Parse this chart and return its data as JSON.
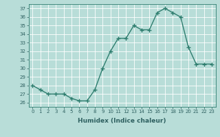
{
  "x": [
    0,
    1,
    2,
    3,
    4,
    5,
    6,
    7,
    8,
    9,
    10,
    11,
    12,
    13,
    14,
    15,
    16,
    17,
    18,
    19,
    20,
    21,
    22,
    23
  ],
  "y": [
    28,
    27.5,
    27,
    27,
    27,
    26.5,
    26.2,
    26.2,
    27.5,
    30,
    32,
    33.5,
    33.5,
    35,
    34.5,
    34.5,
    36.5,
    37,
    36.5,
    36,
    32.5,
    30.5,
    30.5,
    30.5
  ],
  "line_color": "#2e7d6e",
  "marker": "+",
  "bg_color": "#b8ddd8",
  "grid_color": "#e8f8f4",
  "xlabel": "Humidex (Indice chaleur)",
  "ylim": [
    25.5,
    37.5
  ],
  "xlim": [
    -0.5,
    23.5
  ],
  "yticks": [
    26,
    27,
    28,
    29,
    30,
    31,
    32,
    33,
    34,
    35,
    36,
    37
  ],
  "xticks": [
    0,
    1,
    2,
    3,
    4,
    5,
    6,
    7,
    8,
    9,
    10,
    11,
    12,
    13,
    14,
    15,
    16,
    17,
    18,
    19,
    20,
    21,
    22,
    23
  ],
  "font_color": "#2e6060",
  "linewidth": 1.0,
  "markersize": 4,
  "title_fontsize": 6,
  "xlabel_fontsize": 6.5,
  "tick_fontsize": 5
}
